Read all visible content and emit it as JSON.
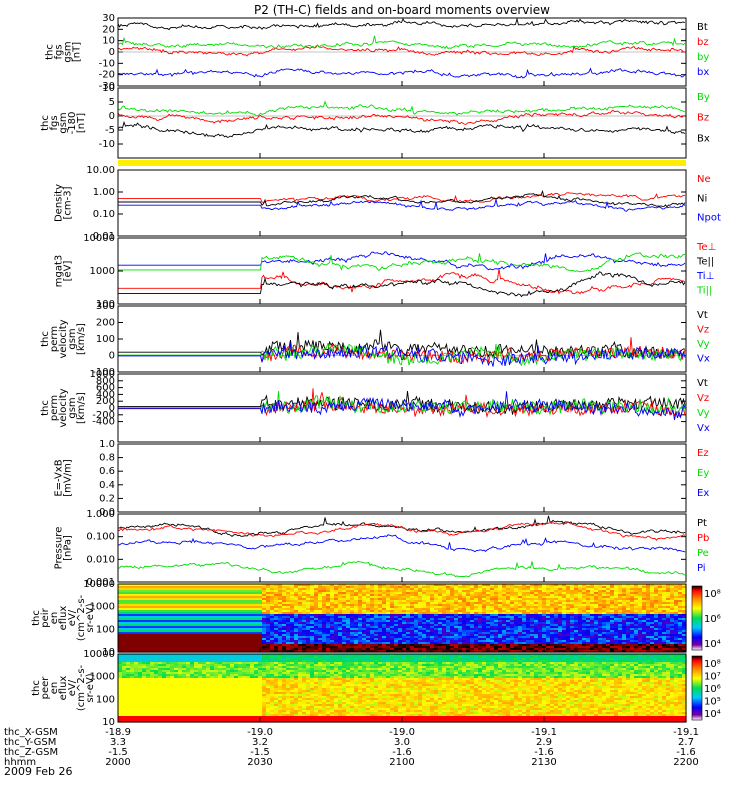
{
  "title": "P2 (TH-C) fields and on-board moments overview",
  "date": "2009 Feb 26",
  "colors": {
    "red": "#ff0000",
    "green": "#00dd00",
    "blue": "#0000ff",
    "black": "#000000",
    "yellow": "#ffee00"
  },
  "time_axis": {
    "rows": [
      {
        "label": "thc_X-GSM",
        "values": [
          "-18.9",
          "-19.0",
          "-19.0",
          "-19.1",
          "-19.1"
        ]
      },
      {
        "label": "thc_Y-GSM",
        "values": [
          "3.3",
          "3.2",
          "3.0",
          "2.9",
          "2.7"
        ]
      },
      {
        "label": "thc_Z-GSM",
        "values": [
          "-1.5",
          "-1.5",
          "-1.6",
          "-1.6",
          "-1.6"
        ]
      },
      {
        "label": "hhmm",
        "values": [
          "2000",
          "2030",
          "2100",
          "2130",
          "2200"
        ]
      }
    ]
  },
  "chart_data": [
    {
      "type": "line",
      "ylabel": [
        "thc",
        "fgs",
        "gsm",
        "[nT]"
      ],
      "ylim": [
        -30,
        30
      ],
      "ticks": [
        "30",
        "20",
        "10",
        "0",
        "-10",
        "-20",
        "-30"
      ],
      "series": [
        {
          "name": "Bt",
          "color": "black",
          "level": 24
        },
        {
          "name": "bz",
          "color": "red",
          "level": 1
        },
        {
          "name": "by",
          "color": "green",
          "level": 5
        },
        {
          "name": "bx",
          "color": "blue",
          "level": -20
        }
      ]
    },
    {
      "type": "line",
      "ylabel": [
        "thc",
        "fgs",
        "gsm",
        "-180",
        "[nT]"
      ],
      "ylim": [
        -15,
        10
      ],
      "ticks": [
        "10",
        "5",
        "0",
        "-5",
        "-10"
      ],
      "series": [
        {
          "name": "By",
          "color": "green",
          "level": 2
        },
        {
          "name": "Bz",
          "color": "red",
          "level": 0
        },
        {
          "name": "Bx",
          "color": "black",
          "level": -5
        }
      ]
    },
    {
      "type": "line",
      "scale": "log",
      "ylabel": [
        "Density",
        "[cm-3]"
      ],
      "ylim": [
        0.01,
        10
      ],
      "ticks": [
        "10.00",
        "1.00",
        "0.10",
        "0.01"
      ],
      "series": [
        {
          "name": "Ne",
          "color": "red",
          "level": 0.5
        },
        {
          "name": "Ni",
          "color": "black",
          "level": 0.35
        },
        {
          "name": "Npot",
          "color": "blue",
          "level": 0.25
        }
      ]
    },
    {
      "type": "line",
      "scale": "log",
      "ylabel": [
        "mgat3",
        "[eV]"
      ],
      "ylim": [
        100,
        10000
      ],
      "ticks": [
        "10000",
        "1000",
        "100"
      ],
      "series": [
        {
          "name": "Te⊥",
          "color": "red",
          "level": 500
        },
        {
          "name": "Te||",
          "color": "black",
          "level": 350
        },
        {
          "name": "Ti⊥",
          "color": "blue",
          "level": 2500
        },
        {
          "name": "Ti||",
          "color": "green",
          "level": 1800
        }
      ]
    },
    {
      "type": "line",
      "ylabel": [
        "thc",
        "perm",
        "velocity",
        "gsm",
        "[km/s]"
      ],
      "ylim": [
        -100,
        300
      ],
      "ticks": [
        "300",
        "200",
        "100",
        "0",
        "-100"
      ],
      "series": [
        {
          "name": "Vt",
          "color": "black",
          "level": 40
        },
        {
          "name": "Vz",
          "color": "red",
          "level": 0
        },
        {
          "name": "Vy",
          "color": "green",
          "level": 5
        },
        {
          "name": "Vx",
          "color": "blue",
          "level": -5
        }
      ]
    },
    {
      "type": "line",
      "ylabel": [
        "thc",
        "perm",
        "velocity",
        "gsm",
        "[km/s]"
      ],
      "ylim": [
        -1000,
        1000
      ],
      "ticks": [
        "1000",
        "800",
        "600",
        "400",
        "200",
        "0",
        "-200",
        "-400"
      ],
      "series": [
        {
          "name": "Vt",
          "color": "black",
          "level": 80
        },
        {
          "name": "Vz",
          "color": "red",
          "level": 0
        },
        {
          "name": "Vy",
          "color": "green",
          "level": 20
        },
        {
          "name": "Vx",
          "color": "blue",
          "level": -40
        }
      ]
    },
    {
      "type": "line",
      "ylabel": [
        "E=-VxB",
        "[mV/m]"
      ],
      "ylim": [
        0,
        1
      ],
      "ticks": [
        "1.0",
        "0.8",
        "0.6",
        "0.4",
        "0.2",
        "0.0"
      ],
      "series": [
        {
          "name": "Ez",
          "color": "red"
        },
        {
          "name": "Ey",
          "color": "green"
        },
        {
          "name": "Ex",
          "color": "blue"
        }
      ]
    },
    {
      "type": "line",
      "scale": "log",
      "ylabel": [
        "Pressure",
        "[nPa]"
      ],
      "ylim": [
        0.001,
        1
      ],
      "ticks": [
        "1.000",
        "0.100",
        "0.010",
        "0.001"
      ],
      "series": [
        {
          "name": "Pt",
          "color": "black",
          "level": 0.22
        },
        {
          "name": "Pb",
          "color": "red",
          "level": 0.18
        },
        {
          "name": "Pe",
          "color": "green",
          "level": 0.004
        },
        {
          "name": "Pi",
          "color": "blue",
          "level": 0.04
        }
      ]
    },
    {
      "type": "heatmap",
      "ylabel": [
        "thc",
        "peir",
        "en",
        "eflux",
        "eV/",
        "(cm^2-s-",
        "sr-eV)"
      ],
      "ylim": [
        10,
        10000
      ],
      "ticks": [
        "10000",
        "1000",
        "100",
        "10"
      ],
      "colorbar": {
        "ticks": [
          "10⁸",
          "10⁶",
          "10⁴"
        ]
      }
    },
    {
      "type": "heatmap",
      "ylabel": [
        "thc",
        "peer",
        "en",
        "eflux",
        "eV/",
        "(cm^2-s-",
        "sr-eV)"
      ],
      "ylim": [
        10,
        10000
      ],
      "ticks": [
        "10000",
        "1000",
        "100",
        "10"
      ],
      "colorbar": {
        "ticks": [
          "10⁸",
          "10⁷",
          "10⁶",
          "10⁵",
          "10⁴"
        ]
      }
    }
  ]
}
